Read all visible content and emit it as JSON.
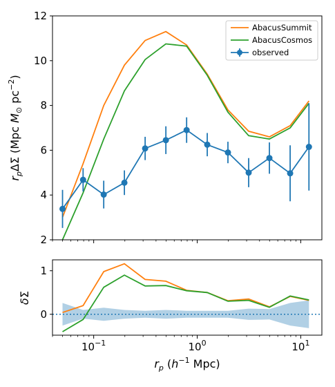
{
  "chart_data": [
    {
      "type": "line",
      "xscale": "log",
      "xlim": [
        0.04,
        16
      ],
      "ylim": [
        2,
        12
      ],
      "yticks": [
        2,
        4,
        6,
        8,
        10,
        12
      ],
      "ylabel": "r_p ΔΣ (Mpc M_⊙ pc^−2)",
      "legend_position": "top-right",
      "x": [
        0.05,
        0.079,
        0.125,
        0.198,
        0.314,
        0.498,
        0.79,
        1.25,
        1.98,
        3.14,
        4.98,
        7.9,
        12.0
      ],
      "series": [
        {
          "name": "AbacusSummit",
          "color": "#ff7f0e",
          "style": "line",
          "values": [
            3.0,
            5.4,
            8.0,
            9.8,
            10.9,
            11.3,
            10.7,
            9.4,
            7.8,
            6.85,
            6.6,
            7.1,
            8.2
          ]
        },
        {
          "name": "AbacusCosmos",
          "color": "#2ca02c",
          "style": "line",
          "values": [
            2.0,
            4.1,
            6.5,
            8.65,
            10.05,
            10.75,
            10.65,
            9.35,
            7.7,
            6.65,
            6.5,
            7.0,
            8.1
          ]
        },
        {
          "name": "observed",
          "color": "#1f77b4",
          "style": "errorbar",
          "values": [
            3.38,
            4.68,
            4.02,
            4.55,
            6.08,
            6.45,
            6.9,
            6.25,
            5.9,
            5.0,
            5.65,
            4.97,
            6.15
          ],
          "errors": [
            0.85,
            0.52,
            0.62,
            0.55,
            0.52,
            0.62,
            0.57,
            0.52,
            0.48,
            0.65,
            0.7,
            1.25,
            1.95
          ]
        }
      ]
    },
    {
      "type": "line",
      "xscale": "log",
      "xlim": [
        0.04,
        16
      ],
      "ylim": [
        -0.48,
        1.25
      ],
      "yticks": [
        0,
        1
      ],
      "xticks": [
        "10^-1",
        "10^0",
        "10^1"
      ],
      "xlabel": "r_p (h^−1 Mpc)",
      "ylabel": "δΣ",
      "x": [
        0.05,
        0.079,
        0.125,
        0.198,
        0.314,
        0.498,
        0.79,
        1.25,
        1.98,
        3.14,
        4.98,
        7.9,
        12.0
      ],
      "series": [
        {
          "name": "AbacusSummit",
          "color": "#ff7f0e",
          "values": [
            0.04,
            0.2,
            0.98,
            1.16,
            0.8,
            0.76,
            0.55,
            0.5,
            0.31,
            0.35,
            0.17,
            0.41,
            0.32
          ]
        },
        {
          "name": "AbacusCosmos",
          "color": "#2ca02c",
          "values": [
            -0.4,
            -0.12,
            0.62,
            0.9,
            0.65,
            0.66,
            0.54,
            0.5,
            0.3,
            0.32,
            0.16,
            0.42,
            0.33
          ]
        }
      ],
      "band": {
        "color": "#1f77b4",
        "upper": [
          0.26,
          0.1,
          0.15,
          0.1,
          0.08,
          0.1,
          0.08,
          0.08,
          0.08,
          0.13,
          0.12,
          0.26,
          0.32
        ],
        "lower": [
          -0.26,
          -0.1,
          -0.15,
          -0.1,
          -0.08,
          -0.1,
          -0.08,
          -0.08,
          -0.08,
          -0.13,
          -0.12,
          -0.26,
          -0.32
        ]
      },
      "reference_line": {
        "y": 0,
        "style": "dotted",
        "color": "#1f77b4"
      }
    }
  ]
}
